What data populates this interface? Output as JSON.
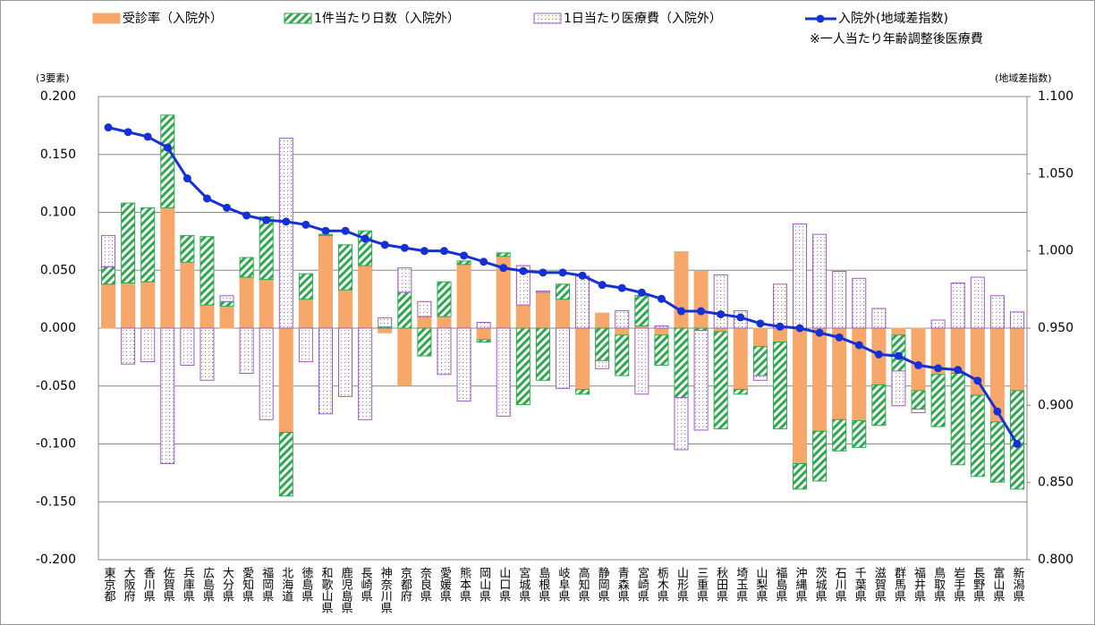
{
  "chart_data": {
    "type": "bar",
    "stacked": true,
    "grid": true,
    "note": "※一人当たり年齢調整後医療費",
    "ylabel": "(3要素)",
    "y2label": "(地域差指数)",
    "categories": [
      "東京都",
      "大阪府",
      "香川県",
      "佐賀県",
      "兵庫県",
      "広島県",
      "大分県",
      "愛知県",
      "福岡県",
      "北海道",
      "徳島県",
      "和歌山県",
      "鹿児島県",
      "長崎県",
      "神奈川県",
      "京都府",
      "奈良県",
      "愛媛県",
      "熊本県",
      "岡山県",
      "山口県",
      "宮城県",
      "島根県",
      "岐阜県",
      "高知県",
      "静岡県",
      "青森県",
      "宮崎県",
      "栃木県",
      "山形県",
      "三重県",
      "秋田県",
      "埼玉県",
      "山梨県",
      "福島県",
      "沖縄県",
      "茨城県",
      "石川県",
      "千葉県",
      "滋賀県",
      "群馬県",
      "福井県",
      "鳥取県",
      "岩手県",
      "長野県",
      "富山県",
      "新潟県"
    ],
    "series": [
      {
        "name": "受診率（入院外）",
        "type": "bar",
        "color": "#f7a76a",
        "pattern": "solid",
        "values": [
          0.038,
          0.039,
          0.04,
          0.104,
          0.057,
          0.02,
          0.019,
          0.044,
          0.042,
          -0.09,
          0.025,
          0.08,
          0.033,
          0.054,
          -0.004,
          -0.049,
          0.01,
          0.01,
          0.055,
          -0.01,
          0.062,
          0.02,
          0.031,
          0.025,
          -0.053,
          0.013,
          -0.006,
          0.002,
          -0.006,
          0.066,
          0.049,
          -0.003,
          -0.053,
          -0.016,
          -0.012,
          -0.117,
          -0.089,
          -0.079,
          -0.08,
          -0.049,
          -0.006,
          -0.054,
          -0.04,
          -0.039,
          -0.058,
          -0.081,
          -0.054
        ]
      },
      {
        "name": "1件当たり日数（入院外）",
        "type": "bar",
        "color": "#2ea84f",
        "pattern": "hatch",
        "values": [
          0.015,
          0.069,
          0.064,
          0.08,
          0.023,
          0.059,
          0.004,
          0.017,
          0.054,
          -0.055,
          0.022,
          0.001,
          0.039,
          0.03,
          0.001,
          0.031,
          -0.024,
          0.03,
          0.003,
          -0.002,
          0.003,
          -0.066,
          -0.045,
          0.013,
          -0.004,
          -0.028,
          -0.035,
          0.026,
          -0.026,
          -0.06,
          -0.002,
          -0.084,
          -0.004,
          -0.025,
          -0.075,
          -0.022,
          -0.043,
          -0.027,
          -0.023,
          -0.035,
          -0.031,
          -0.016,
          -0.045,
          -0.079,
          -0.07,
          -0.052,
          -0.085
        ]
      },
      {
        "name": "1日当たり医療費（入院外）",
        "type": "bar",
        "color": "#9b59c6",
        "pattern": "dots",
        "values": [
          0.027,
          -0.031,
          -0.029,
          -0.117,
          -0.032,
          -0.045,
          0.005,
          -0.039,
          -0.079,
          0.164,
          -0.029,
          -0.074,
          -0.059,
          -0.079,
          0.008,
          0.021,
          0.013,
          -0.04,
          -0.063,
          0.005,
          -0.076,
          0.034,
          0.001,
          -0.052,
          0.045,
          -0.007,
          0.015,
          -0.057,
          0.002,
          -0.045,
          -0.086,
          0.046,
          0.015,
          -0.004,
          0.038,
          0.09,
          0.081,
          0.049,
          0.043,
          0.017,
          -0.03,
          -0.003,
          0.007,
          0.039,
          0.044,
          0.028,
          0.014
        ]
      },
      {
        "name": "入院外(地域差指数)",
        "type": "line",
        "axis": "y2",
        "color": "#1530d6",
        "values": [
          1.08,
          1.077,
          1.074,
          1.067,
          1.047,
          1.034,
          1.028,
          1.023,
          1.02,
          1.019,
          1.017,
          1.013,
          1.013,
          1.008,
          1.004,
          1.002,
          1.0,
          1.0,
          0.997,
          0.993,
          0.989,
          0.987,
          0.986,
          0.986,
          0.984,
          0.978,
          0.976,
          0.973,
          0.969,
          0.961,
          0.961,
          0.959,
          0.957,
          0.953,
          0.951,
          0.95,
          0.947,
          0.944,
          0.939,
          0.933,
          0.932,
          0.926,
          0.924,
          0.923,
          0.916,
          0.896,
          0.875
        ]
      }
    ],
    "ylim": [
      -0.2,
      0.2
    ],
    "yticks": [
      {
        "value": -0.2,
        "label": "-0.200"
      },
      {
        "value": -0.15,
        "label": "-0.150"
      },
      {
        "value": -0.1,
        "label": "-0.100"
      },
      {
        "value": -0.05,
        "label": "-0.050"
      },
      {
        "value": 0,
        "label": "0.000"
      },
      {
        "value": 0.05,
        "label": "0.050"
      },
      {
        "value": 0.1,
        "label": "0.100"
      },
      {
        "value": 0.15,
        "label": "0.150"
      },
      {
        "value": 0.2,
        "label": "0.200"
      }
    ],
    "y2lim": [
      0.8,
      1.1
    ],
    "y2ticks": [
      {
        "value": 0.8,
        "label": "0.800"
      },
      {
        "value": 0.85,
        "label": "0.850"
      },
      {
        "value": 0.9,
        "label": "0.900"
      },
      {
        "value": 0.95,
        "label": "0.950"
      },
      {
        "value": 1.0,
        "label": "1.000"
      },
      {
        "value": 1.05,
        "label": "1.050"
      },
      {
        "value": 1.1,
        "label": "1.100"
      }
    ]
  }
}
